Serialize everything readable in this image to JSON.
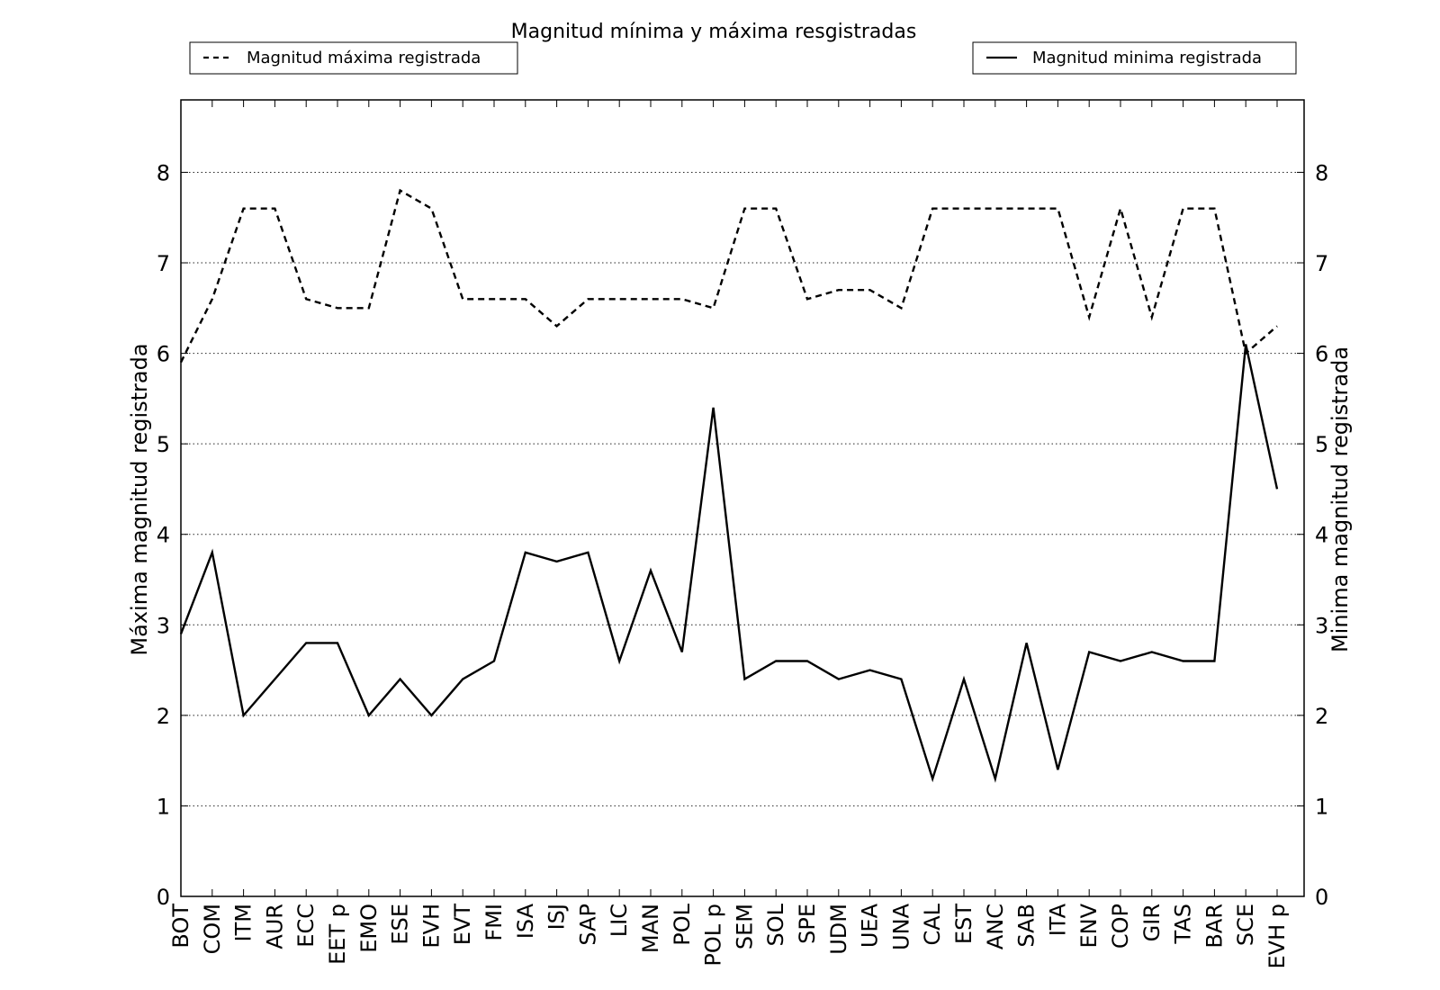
{
  "chart_data": {
    "type": "line",
    "title": "Magnitud mínima y máxima resgistradas",
    "ylabel_left": "Máxima magnitud registrada",
    "ylabel_right": "Minima magnitud registrada",
    "ylim": [
      0,
      8.8
    ],
    "yticks": [
      0,
      1,
      2,
      3,
      4,
      5,
      6,
      7,
      8
    ],
    "grid": "horizontal-dotted",
    "categories": [
      "BOT",
      "COM",
      "ITM",
      "AUR",
      "ECC",
      "EET p",
      "EMO",
      "ESE",
      "EVH",
      "EVT",
      "FMI",
      "ISA",
      "ISJ",
      "SAP",
      "LIC",
      "MAN",
      "POL",
      "POL p",
      "SEM",
      "SOL",
      "SPE",
      "UDM",
      "UEA",
      "UNA",
      "CAL",
      "EST",
      "ANC",
      "SAB",
      "ITA",
      "ENV",
      "COP",
      "GIR",
      "TAS",
      "BAR",
      "SCE",
      "EVH p"
    ],
    "series": [
      {
        "name": "Magnitud máxima registrada",
        "style": "dashed",
        "color": "#000000",
        "legend_position": "top-left",
        "values": [
          5.9,
          6.6,
          7.6,
          7.6,
          6.6,
          6.5,
          6.5,
          7.8,
          7.6,
          6.6,
          6.6,
          6.6,
          6.3,
          6.6,
          6.6,
          6.6,
          6.6,
          6.5,
          7.6,
          7.6,
          6.6,
          6.7,
          6.7,
          6.5,
          7.6,
          7.6,
          7.6,
          7.6,
          7.6,
          6.4,
          7.6,
          6.4,
          7.6,
          7.6,
          6.0,
          6.3
        ]
      },
      {
        "name": "Magnitud minima registrada",
        "style": "solid",
        "color": "#000000",
        "legend_position": "top-right",
        "values": [
          2.9,
          3.8,
          2.0,
          2.4,
          2.8,
          2.8,
          2.0,
          2.4,
          2.0,
          2.4,
          2.6,
          3.8,
          3.7,
          3.8,
          2.6,
          3.6,
          2.7,
          5.4,
          2.4,
          2.6,
          2.6,
          2.4,
          2.5,
          2.4,
          1.3,
          2.4,
          1.3,
          2.8,
          1.4,
          2.7,
          2.6,
          2.7,
          2.6,
          2.6,
          6.1,
          4.5
        ]
      }
    ]
  }
}
